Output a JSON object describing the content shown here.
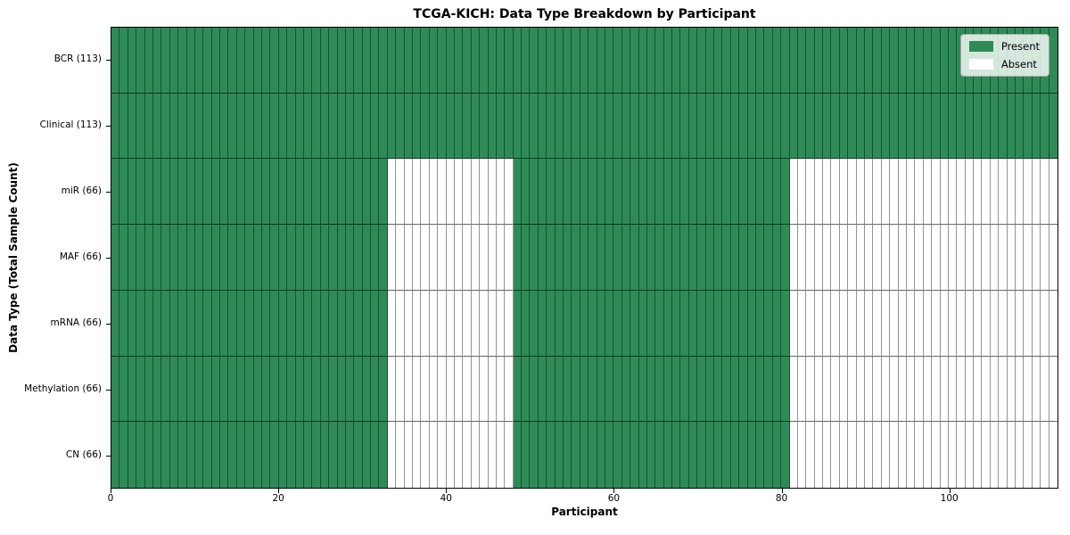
{
  "chart_data": {
    "type": "heatmap",
    "title": "TCGA-KICH: Data Type Breakdown by Participant",
    "xlabel": "Participant",
    "ylabel": "Data Type (Total Sample Count)",
    "x_range": [
      0,
      113
    ],
    "x_ticks": [
      0,
      20,
      40,
      60,
      80,
      100
    ],
    "n_participants": 113,
    "grid": false,
    "legend_position": "upper right",
    "colors": {
      "present": "#2e8b57",
      "absent": "#ffffff"
    },
    "legend": [
      {
        "label": "Present",
        "state": "present",
        "color": "#2e8b57"
      },
      {
        "label": "Absent",
        "state": "absent",
        "color": "#ffffff"
      }
    ],
    "rows": [
      {
        "label": "BCR (113)",
        "data_type": "BCR",
        "present_count": 113,
        "segments": [
          {
            "state": "present",
            "from": 0,
            "to": 113
          }
        ]
      },
      {
        "label": "Clinical (113)",
        "data_type": "Clinical",
        "present_count": 113,
        "segments": [
          {
            "state": "present",
            "from": 0,
            "to": 113
          }
        ]
      },
      {
        "label": "miR (66)",
        "data_type": "miR",
        "present_count": 66,
        "segments": [
          {
            "state": "present",
            "from": 0,
            "to": 33
          },
          {
            "state": "absent",
            "from": 33,
            "to": 48
          },
          {
            "state": "present",
            "from": 48,
            "to": 81
          },
          {
            "state": "absent",
            "from": 81,
            "to": 113
          }
        ]
      },
      {
        "label": "MAF (66)",
        "data_type": "MAF",
        "present_count": 66,
        "segments": [
          {
            "state": "present",
            "from": 0,
            "to": 33
          },
          {
            "state": "absent",
            "from": 33,
            "to": 48
          },
          {
            "state": "present",
            "from": 48,
            "to": 81
          },
          {
            "state": "absent",
            "from": 81,
            "to": 113
          }
        ]
      },
      {
        "label": "mRNA (66)",
        "data_type": "mRNA",
        "present_count": 66,
        "segments": [
          {
            "state": "present",
            "from": 0,
            "to": 33
          },
          {
            "state": "absent",
            "from": 33,
            "to": 48
          },
          {
            "state": "present",
            "from": 48,
            "to": 81
          },
          {
            "state": "absent",
            "from": 81,
            "to": 113
          }
        ]
      },
      {
        "label": "Methylation (66)",
        "data_type": "Methylation",
        "present_count": 66,
        "segments": [
          {
            "state": "present",
            "from": 0,
            "to": 33
          },
          {
            "state": "absent",
            "from": 33,
            "to": 48
          },
          {
            "state": "present",
            "from": 48,
            "to": 81
          },
          {
            "state": "absent",
            "from": 81,
            "to": 113
          }
        ]
      },
      {
        "label": "CN (66)",
        "data_type": "CN",
        "present_count": 66,
        "segments": [
          {
            "state": "present",
            "from": 0,
            "to": 33
          },
          {
            "state": "absent",
            "from": 33,
            "to": 48
          },
          {
            "state": "present",
            "from": 48,
            "to": 81
          },
          {
            "state": "absent",
            "from": 81,
            "to": 113
          }
        ]
      }
    ]
  }
}
